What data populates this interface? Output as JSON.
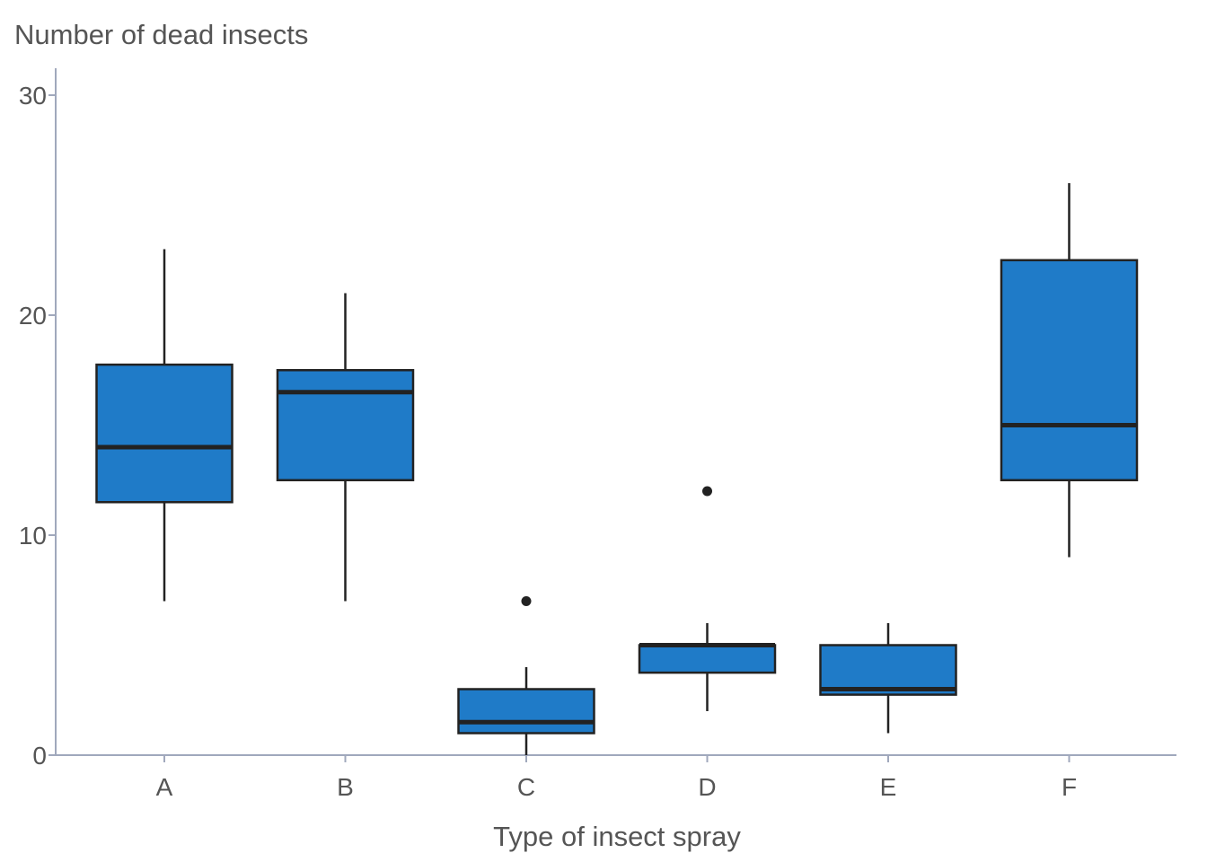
{
  "chart_data": {
    "type": "box",
    "title": "",
    "ylabel": "Number of dead insects",
    "xlabel": "Type of insect spray",
    "ylim": [
      0,
      30
    ],
    "yticks": [
      0,
      10,
      20,
      30
    ],
    "categories": [
      "A",
      "B",
      "C",
      "D",
      "E",
      "F"
    ],
    "boxes": [
      {
        "category": "A",
        "whisker_low": 7,
        "q1": 11.5,
        "median": 14,
        "q3": 17.75,
        "whisker_high": 23,
        "outliers": []
      },
      {
        "category": "B",
        "whisker_low": 7,
        "q1": 12.5,
        "median": 16.5,
        "q3": 17.5,
        "whisker_high": 21,
        "outliers": []
      },
      {
        "category": "C",
        "whisker_low": 0,
        "q1": 1,
        "median": 1.5,
        "q3": 3,
        "whisker_high": 4,
        "outliers": [
          7
        ]
      },
      {
        "category": "D",
        "whisker_low": 2,
        "q1": 3.75,
        "median": 5,
        "q3": 5,
        "whisker_high": 6,
        "outliers": [
          12
        ]
      },
      {
        "category": "E",
        "whisker_low": 1,
        "q1": 2.75,
        "median": 3,
        "q3": 5,
        "whisker_high": 6,
        "outliers": []
      },
      {
        "category": "F",
        "whisker_low": 9,
        "q1": 12.5,
        "median": 15,
        "q3": 22.5,
        "whisker_high": 26,
        "outliers": []
      }
    ],
    "grid": false,
    "legend": "none",
    "colors": {
      "box_fill": "#1f7bc8",
      "stroke": "#222222",
      "axis": "#a0a8bc",
      "text": "#555555"
    }
  }
}
